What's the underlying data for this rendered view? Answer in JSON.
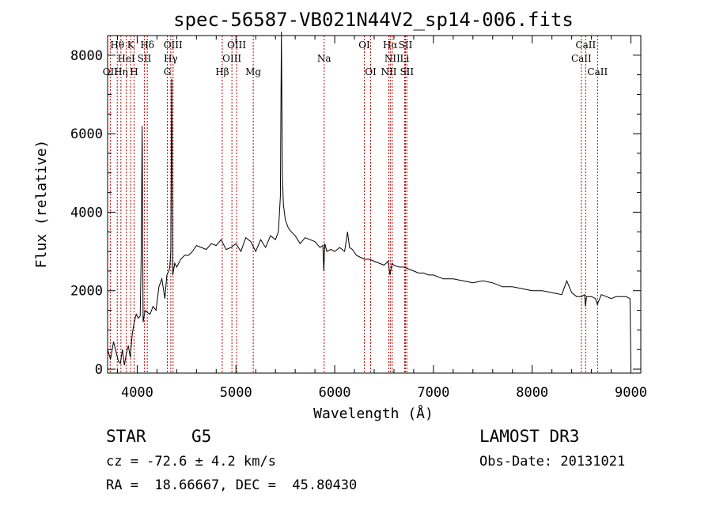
{
  "chart_data": {
    "type": "line",
    "title": "spec-56587-VB021N44V2_sp14-006.fits",
    "xlabel": "Wavelength (Å)",
    "ylabel": "Flux (relative)",
    "xlim": [
      3700,
      9100
    ],
    "ylim": [
      -100,
      8500
    ],
    "xticks": [
      4000,
      5000,
      6000,
      7000,
      8000,
      9000
    ],
    "yticks": [
      0,
      2000,
      4000,
      6000,
      8000
    ],
    "line_color": "#000000",
    "marker_color": "#c00000",
    "series": [
      {
        "name": "flux",
        "x": [
          3700,
          3730,
          3760,
          3790,
          3810,
          3830,
          3850,
          3870,
          3890,
          3910,
          3930,
          3950,
          3970,
          3990,
          4010,
          4030,
          4040,
          4050,
          4060,
          4080,
          4100,
          4130,
          4160,
          4190,
          4220,
          4250,
          4280,
          4300,
          4320,
          4330,
          4340,
          4350,
          4360,
          4380,
          4400,
          4440,
          4480,
          4520,
          4560,
          4600,
          4650,
          4700,
          4750,
          4800,
          4850,
          4900,
          4950,
          5000,
          5050,
          5100,
          5150,
          5200,
          5250,
          5300,
          5350,
          5400,
          5430,
          5450,
          5460,
          5470,
          5480,
          5500,
          5530,
          5560,
          5600,
          5650,
          5700,
          5750,
          5800,
          5850,
          5880,
          5890,
          5900,
          5920,
          5960,
          6000,
          6050,
          6100,
          6130,
          6150,
          6180,
          6220,
          6260,
          6300,
          6350,
          6400,
          6450,
          6500,
          6540,
          6560,
          6580,
          6600,
          6650,
          6700,
          6750,
          6800,
          6850,
          6900,
          6950,
          7000,
          7100,
          7200,
          7300,
          7400,
          7500,
          7600,
          7700,
          7800,
          7900,
          8000,
          8100,
          8200,
          8300,
          8350,
          8400,
          8450,
          8500,
          8530,
          8540,
          8550,
          8600,
          8640,
          8660,
          8700,
          8750,
          8800,
          8850,
          8900,
          8950,
          8990,
          9000
        ],
        "y": [
          500,
          250,
          700,
          400,
          200,
          150,
          500,
          100,
          400,
          600,
          300,
          900,
          1200,
          1400,
          1300,
          1350,
          2800,
          6200,
          1200,
          1500,
          1450,
          1400,
          1600,
          1500,
          2100,
          2300,
          1800,
          2400,
          2500,
          2600,
          3000,
          7400,
          2400,
          2700,
          2600,
          2800,
          2900,
          2900,
          3000,
          3150,
          3100,
          3050,
          3200,
          3150,
          3300,
          3050,
          3100,
          3200,
          3000,
          3350,
          3250,
          3000,
          3300,
          3100,
          3400,
          3300,
          3500,
          4400,
          8600,
          5000,
          4200,
          3800,
          3600,
          3500,
          3400,
          3200,
          3350,
          3300,
          3250,
          3100,
          3150,
          2500,
          3200,
          3000,
          3050,
          3000,
          3100,
          3000,
          3500,
          3100,
          3050,
          2900,
          2850,
          2800,
          2800,
          2750,
          2700,
          2650,
          2750,
          2400,
          2700,
          2650,
          2600,
          2600,
          2550,
          2500,
          2450,
          2450,
          2400,
          2400,
          2300,
          2300,
          2250,
          2200,
          2250,
          2200,
          2100,
          2100,
          2050,
          2000,
          2000,
          1950,
          1900,
          2250,
          1950,
          1850,
          1850,
          1900,
          1600,
          1850,
          1850,
          1800,
          1650,
          1900,
          1850,
          1800,
          1850,
          1850,
          1850,
          1800,
          100
        ]
      }
    ],
    "line_markers": [
      {
        "name": "Hθ",
        "x": 3798,
        "row": 1
      },
      {
        "name": "Hη",
        "x": 3835,
        "row": 3
      },
      {
        "name": "OII",
        "x": 3727,
        "row": 3
      },
      {
        "name": "HeI",
        "x": 3889,
        "row": 2
      },
      {
        "name": "K",
        "x": 3934,
        "row": 1
      },
      {
        "name": "H",
        "x": 3968,
        "row": 3
      },
      {
        "name": "SII",
        "x": 4072,
        "row": 2
      },
      {
        "name": "Hδ",
        "x": 4102,
        "row": 1
      },
      {
        "name": "G",
        "x": 4305,
        "row": 3
      },
      {
        "name": "Hγ",
        "x": 4340,
        "row": 2
      },
      {
        "name": "OIII",
        "x": 4363,
        "row": 1
      },
      {
        "name": "Hβ",
        "x": 4861,
        "row": 3
      },
      {
        "name": "OIII",
        "x": 4959,
        "row": 2
      },
      {
        "name": "OIII",
        "x": 5007,
        "row": 1
      },
      {
        "name": "Mg",
        "x": 5175,
        "row": 3
      },
      {
        "name": "Na",
        "x": 5893,
        "row": 2
      },
      {
        "name": "OI",
        "x": 6300,
        "row": 1
      },
      {
        "name": "OI",
        "x": 6364,
        "row": 3
      },
      {
        "name": "NII",
        "x": 6548,
        "row": 3
      },
      {
        "name": "Hα",
        "x": 6563,
        "row": 1
      },
      {
        "name": "NII",
        "x": 6583,
        "row": 2
      },
      {
        "name": "Li",
        "x": 6708,
        "row": 2
      },
      {
        "name": "SII",
        "x": 6717,
        "row": 1
      },
      {
        "name": "SII",
        "x": 6731,
        "row": 3
      },
      {
        "name": "CaII",
        "x": 8498,
        "row": 2
      },
      {
        "name": "CaII",
        "x": 8542,
        "row": 1
      },
      {
        "name": "CaII",
        "x": 8662,
        "row": 3
      }
    ]
  },
  "info": {
    "object_class": "STAR",
    "subclass": "G5",
    "survey": "LAMOST DR3",
    "cz": "cz = -72.6 ± 4.2 km/s",
    "obs_date": "Obs-Date: 20131021",
    "coords": "RA =  18.66667, DEC =  45.80430"
  }
}
